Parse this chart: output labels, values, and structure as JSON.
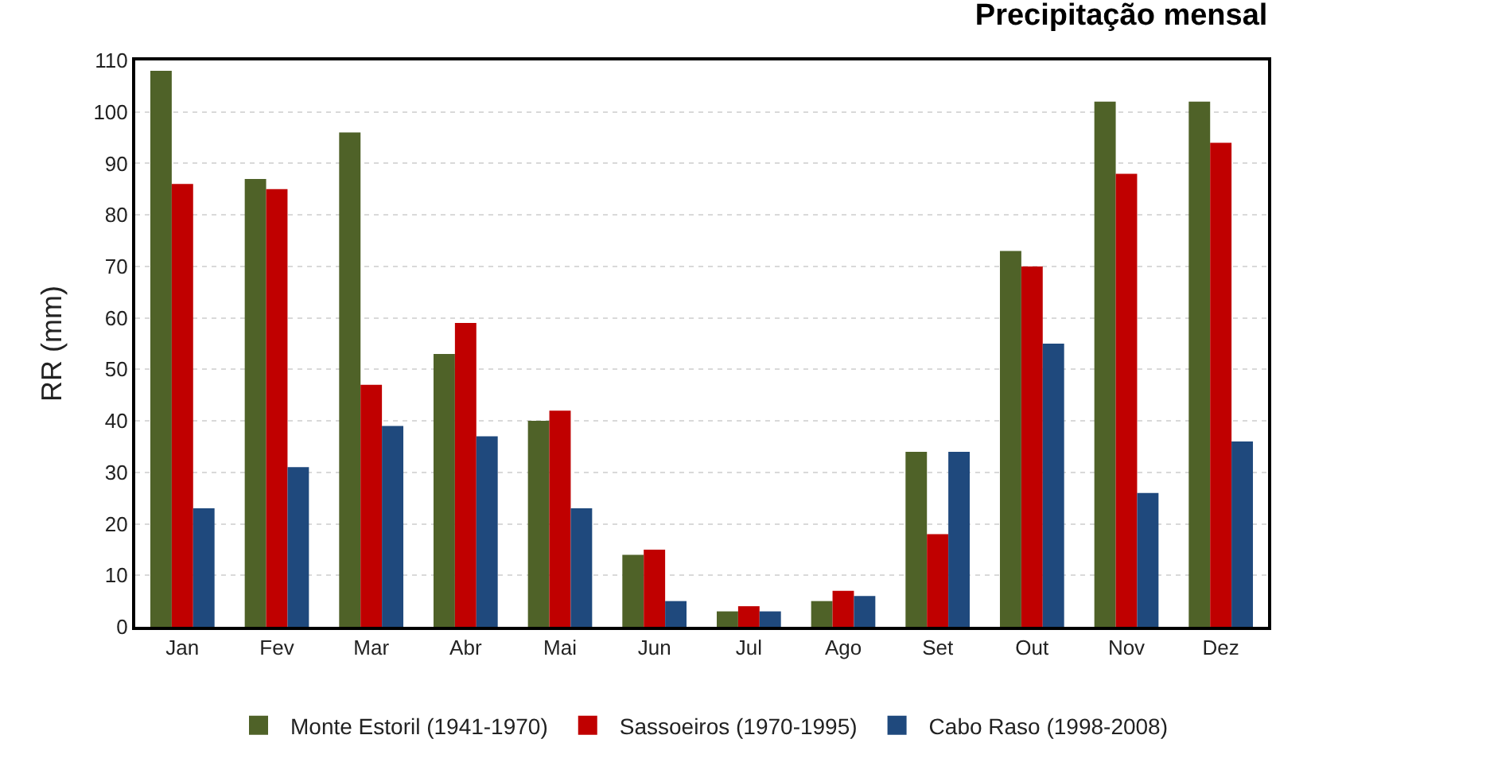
{
  "chart_data": {
    "type": "bar",
    "title": "Precipitação mensal",
    "ylabel": "RR (mm)",
    "categories": [
      "Jan",
      "Fev",
      "Mar",
      "Abr",
      "Mai",
      "Jun",
      "Jul",
      "Ago",
      "Set",
      "Out",
      "Nov",
      "Dez"
    ],
    "series": [
      {
        "name": "Monte Estoril (1941-1970)",
        "color": "#4f6228",
        "values": [
          108,
          87,
          96,
          53,
          40,
          14,
          3,
          5,
          34,
          73,
          102,
          102
        ]
      },
      {
        "name": "Sassoeiros (1970-1995)",
        "color": "#c00000",
        "values": [
          86,
          85,
          47,
          59,
          42,
          15,
          4,
          7,
          18,
          70,
          88,
          94
        ]
      },
      {
        "name": "Cabo Raso (1998-2008)",
        "color": "#1f497d",
        "values": [
          23,
          31,
          39,
          37,
          23,
          5,
          3,
          6,
          34,
          55,
          26,
          36
        ]
      }
    ],
    "ylim": [
      0,
      110
    ],
    "yticks": [
      0,
      10,
      20,
      30,
      40,
      50,
      60,
      70,
      80,
      90,
      100,
      110
    ],
    "grid": "y",
    "legend": "bottom"
  }
}
